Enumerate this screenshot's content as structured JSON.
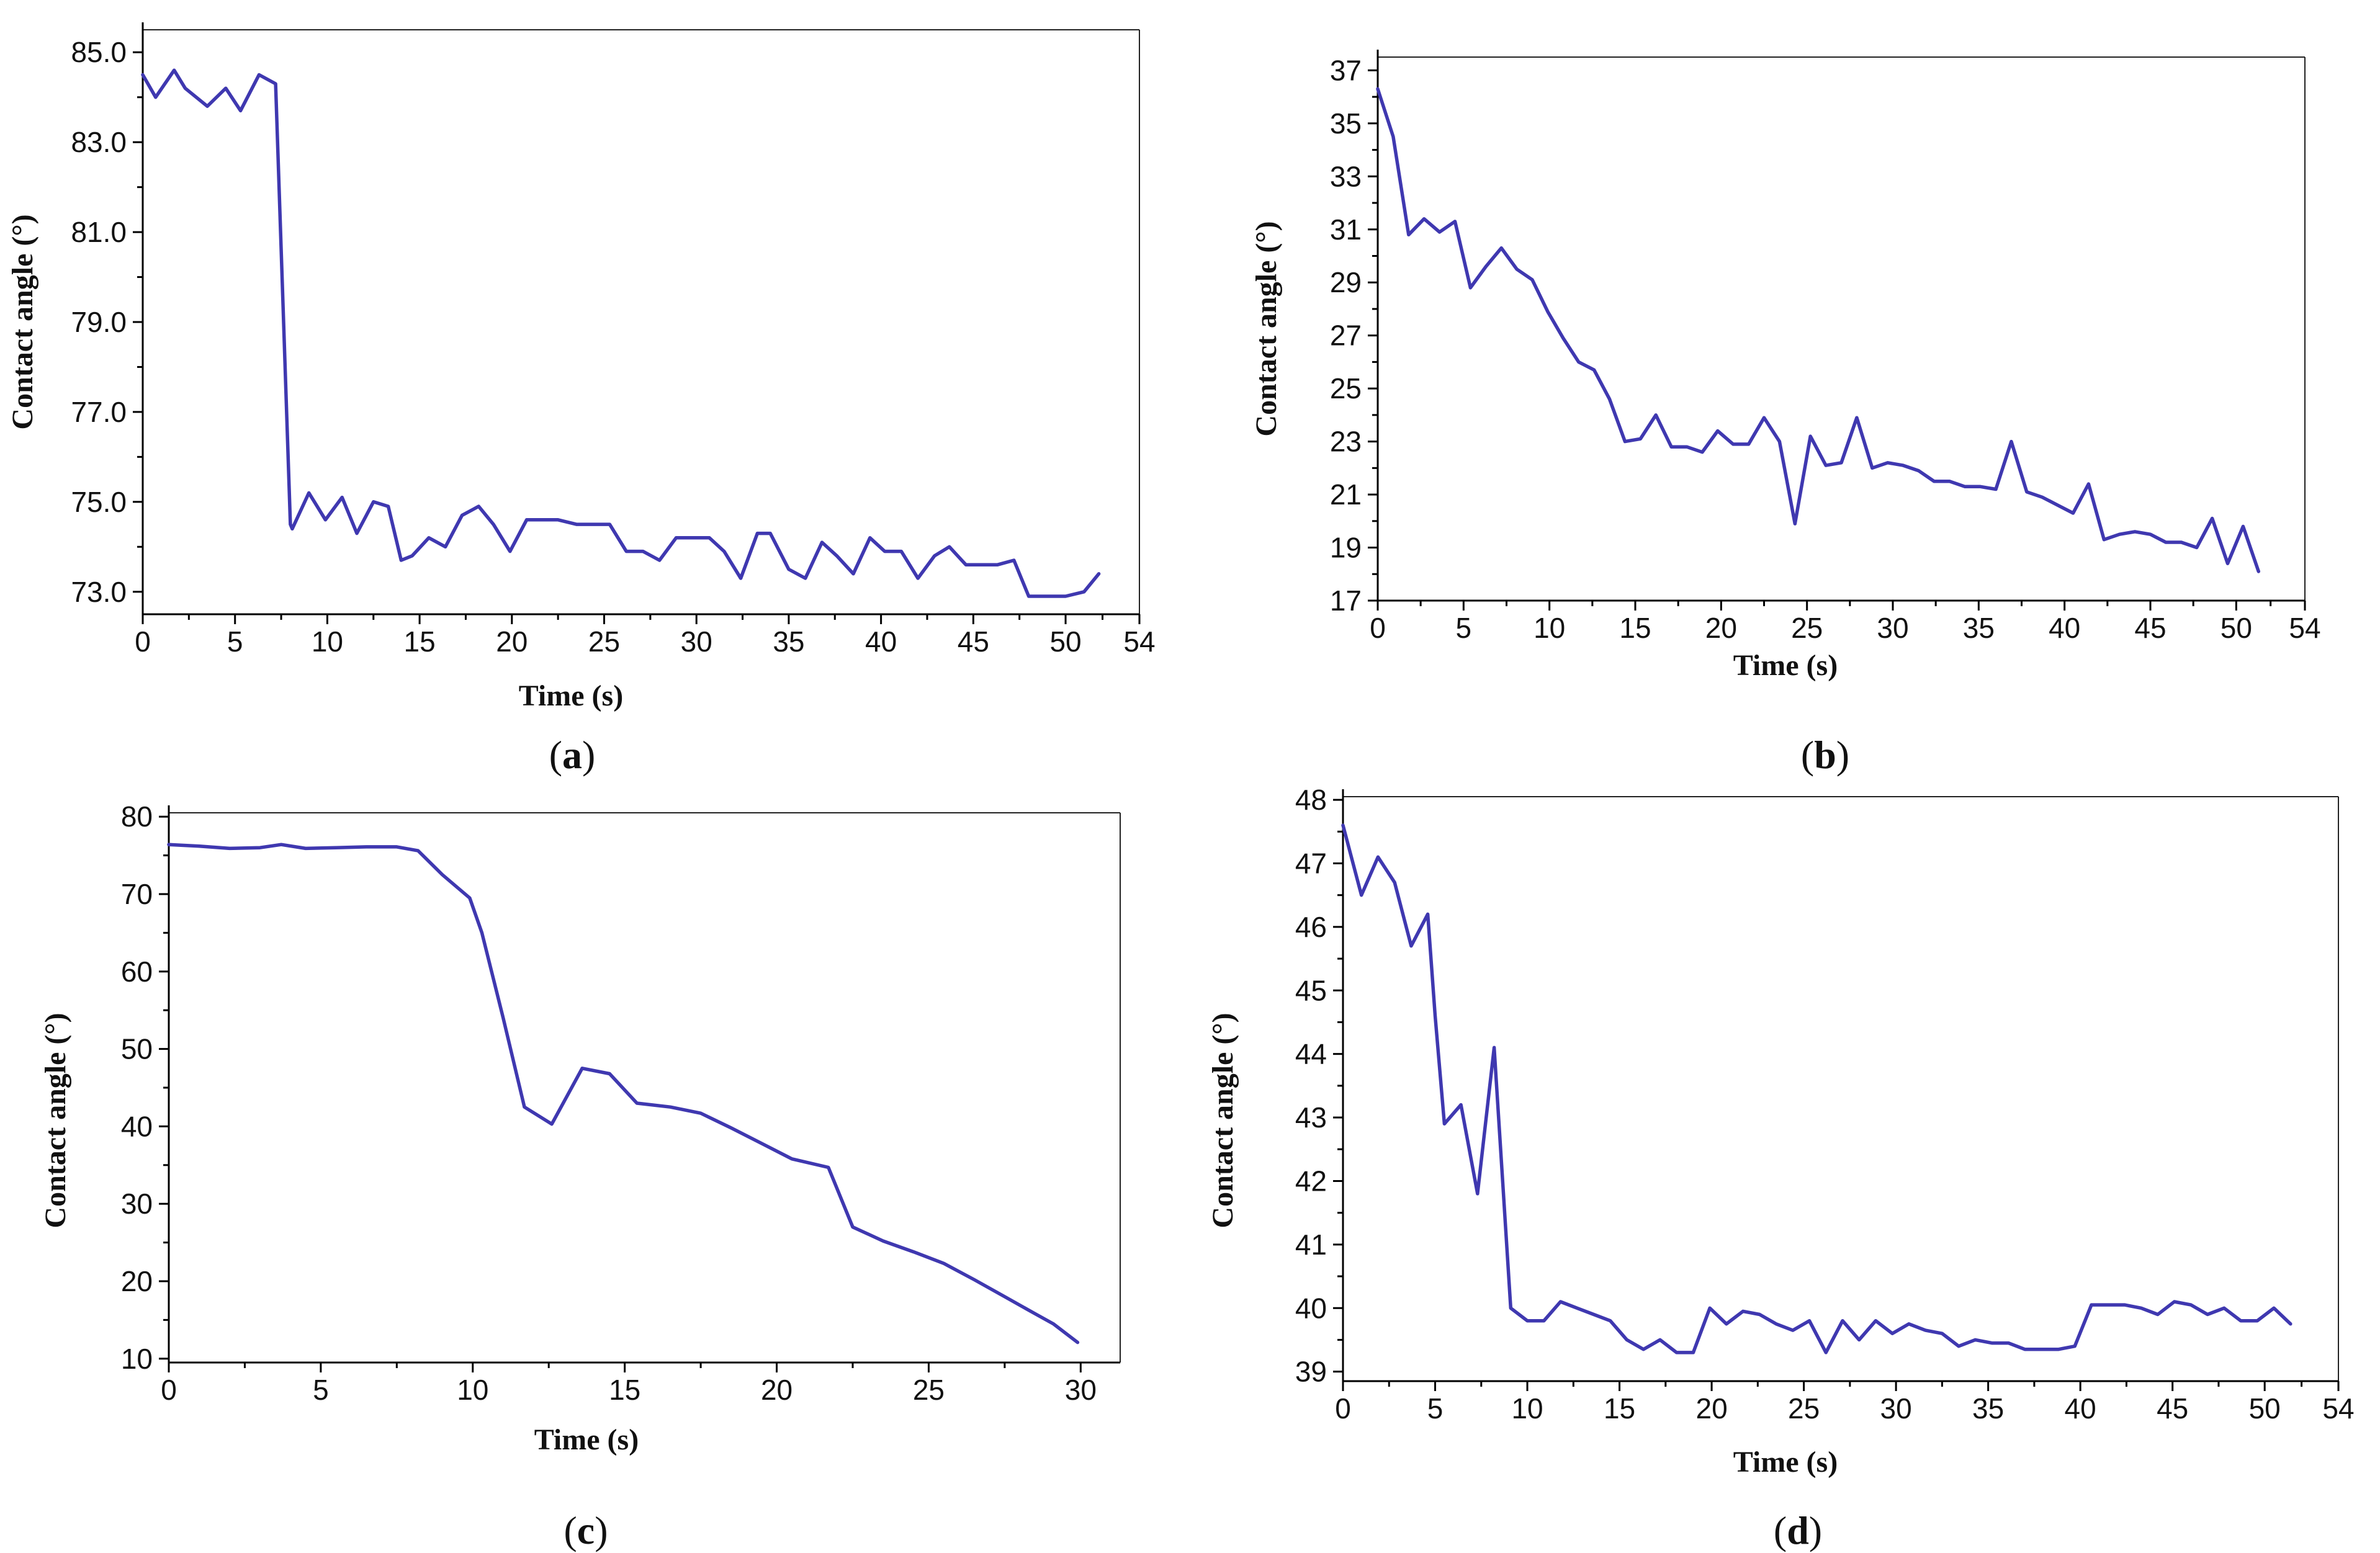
{
  "colors": {
    "series": "#3f38b0",
    "axis": "#000000"
  },
  "chart_data": [
    {
      "type": "line",
      "panel_label": "a",
      "xlabel": "Time (s)",
      "ylabel": "Contact angle (°)",
      "xlim": [
        0,
        54
      ],
      "ylim": [
        72.5,
        85.5
      ],
      "xticks": [
        0,
        5,
        10,
        15,
        20,
        25,
        30,
        35,
        40,
        45,
        50,
        54
      ],
      "xtick_labels": [
        "0",
        "5",
        "10",
        "15",
        "20",
        "25",
        "30",
        "35",
        "40",
        "45",
        "50",
        "54"
      ],
      "yticks": [
        73,
        75,
        77,
        79,
        81,
        83,
        85
      ],
      "ytick_labels": [
        "73.0",
        "75.0",
        "77.0",
        "79.0",
        "81.0",
        "83.0",
        "85.0"
      ],
      "series": [
        {
          "name": "Contact angle",
          "x": [
            0,
            0.7,
            1.7,
            2.3,
            3.5,
            4.5,
            5.3,
            6.3,
            7.2,
            8.0,
            8.1,
            9.0,
            9.9,
            10.8,
            11.6,
            12.5,
            13.3,
            14.0,
            14.6,
            15.5,
            16.4,
            17.3,
            18.2,
            19.0,
            19.9,
            20.8,
            21.7,
            22.5,
            23.5,
            24.3,
            25.3,
            26.2,
            27.1,
            28.0,
            28.9,
            29.8,
            30.7,
            31.5,
            32.4,
            33.3,
            34.0,
            35.0,
            35.9,
            36.8,
            37.6,
            38.5,
            39.4,
            40.2,
            41.1,
            42.0,
            42.9,
            43.7,
            44.6,
            45.5,
            46.3,
            47.2,
            48.0,
            49.0,
            50.0,
            51.0,
            51.8
          ],
          "y": [
            84.5,
            84.0,
            84.6,
            84.2,
            83.8,
            84.2,
            83.7,
            84.5,
            84.3,
            74.5,
            74.4,
            75.2,
            74.6,
            75.1,
            74.3,
            75.0,
            74.9,
            73.7,
            73.8,
            74.2,
            74.0,
            74.7,
            74.9,
            74.5,
            73.9,
            74.6,
            74.6,
            74.6,
            74.5,
            74.5,
            74.5,
            73.9,
            73.9,
            73.7,
            74.2,
            74.2,
            74.2,
            73.9,
            73.3,
            74.3,
            74.3,
            73.5,
            73.3,
            74.1,
            73.8,
            73.4,
            74.2,
            73.9,
            73.9,
            73.3,
            73.8,
            74.0,
            73.6,
            73.6,
            73.6,
            73.7,
            72.9,
            72.9,
            72.9,
            73.0,
            73.4
          ]
        }
      ]
    },
    {
      "type": "line",
      "panel_label": "b",
      "xlabel": "Time (s)",
      "ylabel": "Contact angle (°)",
      "xlim": [
        0,
        54
      ],
      "ylim": [
        17,
        37.5
      ],
      "xticks": [
        0,
        5,
        10,
        15,
        20,
        25,
        30,
        35,
        40,
        45,
        50,
        54
      ],
      "xtick_labels": [
        "0",
        "5",
        "10",
        "15",
        "20",
        "25",
        "30",
        "35",
        "40",
        "45",
        "50",
        "54"
      ],
      "yticks": [
        17,
        19,
        21,
        23,
        25,
        27,
        29,
        31,
        33,
        35,
        37
      ],
      "ytick_labels": [
        "17",
        "19",
        "21",
        "23",
        "25",
        "27",
        "29",
        "31",
        "33",
        "35",
        "37"
      ],
      "series": [
        {
          "name": "Contact angle",
          "x": [
            0,
            0.9,
            1.8,
            2.7,
            3.6,
            4.5,
            5.4,
            6.3,
            7.2,
            8.1,
            9.0,
            9.9,
            10.8,
            11.7,
            12.6,
            13.5,
            14.4,
            15.3,
            16.2,
            17.1,
            18.0,
            18.9,
            19.8,
            20.7,
            21.6,
            22.5,
            23.4,
            24.3,
            25.2,
            26.1,
            27.0,
            27.9,
            28.8,
            29.7,
            30.6,
            31.5,
            32.4,
            33.3,
            34.2,
            35.1,
            36.0,
            36.9,
            37.8,
            38.7,
            39.6,
            40.5,
            41.4,
            42.3,
            43.2,
            44.1,
            45.0,
            45.9,
            46.8,
            47.7,
            48.6,
            49.5,
            50.4,
            51.3
          ],
          "y": [
            36.3,
            34.5,
            30.8,
            31.4,
            30.9,
            31.3,
            28.8,
            29.6,
            30.3,
            29.5,
            29.1,
            27.9,
            26.9,
            26.0,
            25.7,
            24.6,
            23.0,
            23.1,
            24.0,
            22.8,
            22.8,
            22.6,
            23.4,
            22.9,
            22.9,
            23.9,
            23.0,
            19.9,
            23.2,
            22.1,
            22.2,
            23.9,
            22.0,
            22.2,
            22.1,
            21.9,
            21.5,
            21.5,
            21.3,
            21.3,
            21.2,
            23.0,
            21.1,
            20.9,
            20.6,
            20.3,
            21.4,
            19.3,
            19.5,
            19.6,
            19.5,
            19.2,
            19.2,
            19.0,
            20.1,
            18.4,
            19.8,
            18.1
          ]
        }
      ]
    },
    {
      "type": "line",
      "panel_label": "c",
      "xlabel": "Time (s)",
      "ylabel": "Contact angle (°)",
      "xlim": [
        0,
        31.3
      ],
      "ylim": [
        9.5,
        80.5
      ],
      "xticks": [
        0,
        5,
        10,
        15,
        20,
        25,
        30
      ],
      "xtick_labels": [
        "0",
        "5",
        "10",
        "15",
        "20",
        "25",
        "30"
      ],
      "yticks": [
        10,
        20,
        30,
        40,
        50,
        60,
        70,
        80
      ],
      "ytick_labels": [
        "10",
        "20",
        "30",
        "40",
        "50",
        "60",
        "70",
        "80"
      ],
      "series": [
        {
          "name": "Contact angle",
          "x": [
            0,
            1.0,
            2.0,
            3.0,
            3.7,
            4.5,
            5.5,
            6.5,
            7.5,
            8.2,
            9.0,
            9.9,
            10.3,
            11.0,
            11.7,
            12.6,
            13.6,
            14.5,
            15.4,
            16.5,
            17.5,
            18.5,
            19.5,
            20.5,
            21.7,
            22.5,
            23.5,
            24.5,
            25.5,
            26.5,
            27.5,
            28.5,
            29.1,
            29.9
          ],
          "y": [
            76.4,
            76.2,
            75.9,
            76.0,
            76.4,
            75.9,
            76.0,
            76.1,
            76.1,
            75.6,
            72.5,
            69.5,
            65.0,
            54.0,
            42.5,
            40.3,
            47.5,
            46.8,
            43.0,
            42.5,
            41.7,
            39.8,
            37.8,
            35.8,
            34.7,
            27.0,
            25.2,
            23.8,
            22.3,
            20.2,
            18.0,
            15.8,
            14.5,
            12.1
          ]
        }
      ]
    },
    {
      "type": "line",
      "panel_label": "d",
      "xlabel": "Time (s)",
      "ylabel": "Contact angle (°)",
      "xlim": [
        0,
        54
      ],
      "ylim": [
        38.85,
        48.05
      ],
      "xticks": [
        0,
        5,
        10,
        15,
        20,
        25,
        30,
        35,
        40,
        45,
        50,
        54
      ],
      "xtick_labels": [
        "0",
        "5",
        "10",
        "15",
        "20",
        "25",
        "30",
        "35",
        "40",
        "45",
        "50",
        "54"
      ],
      "yticks": [
        39,
        40,
        41,
        42,
        43,
        44,
        45,
        46,
        47,
        48
      ],
      "ytick_labels": [
        "39",
        "40",
        "41",
        "42",
        "43",
        "44",
        "45",
        "46",
        "47",
        "48"
      ],
      "series": [
        {
          "name": "Contact angle",
          "x": [
            0,
            1.0,
            1.9,
            2.8,
            3.7,
            4.6,
            5.0,
            5.5,
            6.4,
            7.3,
            8.2,
            9.1,
            10.0,
            10.9,
            11.8,
            12.7,
            13.6,
            14.5,
            15.4,
            16.3,
            17.2,
            18.1,
            19.0,
            19.9,
            20.8,
            21.7,
            22.6,
            23.5,
            24.4,
            25.3,
            26.2,
            27.1,
            28.0,
            28.9,
            29.8,
            30.7,
            31.6,
            32.5,
            33.4,
            34.3,
            35.2,
            36.1,
            37.0,
            37.9,
            38.8,
            39.7,
            40.6,
            41.5,
            42.4,
            43.3,
            44.2,
            45.1,
            46.0,
            46.9,
            47.8,
            48.7,
            49.6,
            50.5,
            51.4
          ],
          "y": [
            47.6,
            46.5,
            47.1,
            46.7,
            45.7,
            46.2,
            44.6,
            42.9,
            43.2,
            41.8,
            44.1,
            40.0,
            39.8,
            39.8,
            40.1,
            40.0,
            39.9,
            39.8,
            39.5,
            39.35,
            39.5,
            39.3,
            39.3,
            40.0,
            39.75,
            39.95,
            39.9,
            39.75,
            39.65,
            39.8,
            39.3,
            39.8,
            39.5,
            39.8,
            39.6,
            39.75,
            39.65,
            39.6,
            39.4,
            39.5,
            39.45,
            39.45,
            39.35,
            39.35,
            39.35,
            39.4,
            40.05,
            40.05,
            40.05,
            40.0,
            39.9,
            40.1,
            40.05,
            39.9,
            40.0,
            39.8,
            39.8,
            40.0,
            39.75
          ]
        }
      ]
    }
  ]
}
